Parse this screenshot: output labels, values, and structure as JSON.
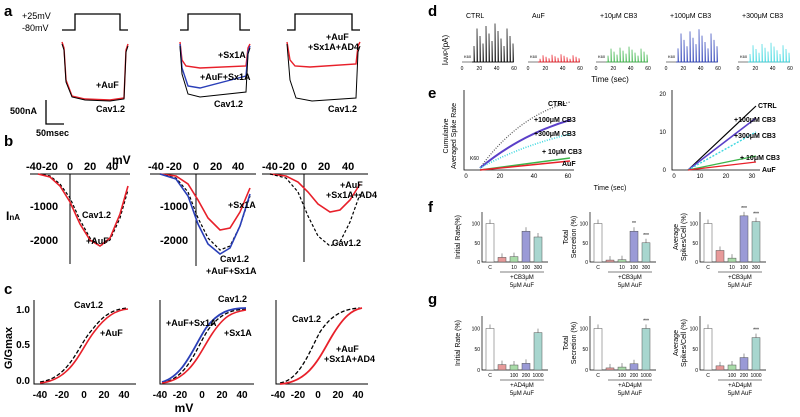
{
  "colors": {
    "black": "#000000",
    "red": "#e8202a",
    "blue": "#2a3fb8",
    "gray": "#8a8a8a",
    "green": "#3cb54a",
    "cyan": "#3fd8e0",
    "violet": "#5a3fc8",
    "lightblue": "#8fb9e8",
    "pinkbar": "#e79a9a",
    "greenbar": "#a9dca9",
    "purplebar": "#9a9ad6",
    "tealbar": "#a8d6cf"
  },
  "panel_a": {
    "letter": "a",
    "v_high": "+25mV",
    "v_low": "-80mV",
    "scale_y": "500nA",
    "scale_x": "50msec",
    "plots": [
      {
        "labels": [
          "+AuF",
          "Cav1.2"
        ]
      },
      {
        "labels": [
          "+Sx1A",
          "+AuF+Sx1A",
          "Cav1.2"
        ]
      },
      {
        "labels": [
          "+AuF",
          "+Sx1A+AD4",
          "Cav1.2"
        ]
      }
    ]
  },
  "panel_b": {
    "letter": "b",
    "x_unit": "mV",
    "y_unit": "I",
    "y_unit_sub": "nA",
    "x_ticks": [
      "-40",
      "-20",
      "0",
      "20",
      "40"
    ],
    "y_ticks": [
      "-1000",
      "-2000"
    ],
    "plots": [
      {
        "labels": [
          "Cav1.2",
          "+AuF"
        ]
      },
      {
        "labels": [
          "+Sx1A",
          "Cav1.2",
          "+AuF+Sx1A"
        ]
      },
      {
        "labels": [
          "+AuF",
          "+Sx1A+AD4",
          "Cav1.2"
        ]
      }
    ]
  },
  "panel_c": {
    "letter": "c",
    "ylabel": "G/Gmax",
    "xlabel": "mV",
    "x_ticks": [
      "-40",
      "-20",
      "0",
      "20",
      "40"
    ],
    "y_ticks": [
      "1.0",
      "0.5",
      "0.0"
    ],
    "plots": [
      {
        "labels": [
          "Cav1.2",
          "+AuF"
        ]
      },
      {
        "labels": [
          "+AuF+Sx1A",
          "Cav1.2",
          "+Sx1A"
        ]
      },
      {
        "labels": [
          "Cav1.2",
          "+AuF",
          "+Sx1A+AD4"
        ]
      }
    ]
  },
  "panel_d": {
    "letter": "d",
    "ylabel": "I",
    "ylabel_sub": "AMP",
    "ylabel_unit": "(pA)",
    "xlabel": "Time (sec)",
    "x_ticks": [
      "0",
      "20",
      "40",
      "60"
    ],
    "marker": "K60",
    "traces": [
      {
        "label": "CTRL"
      },
      {
        "label": "AuF"
      },
      {
        "label": "+10μM CB3"
      },
      {
        "label": "+100μM CB3"
      },
      {
        "label": "+300μM CB3"
      }
    ]
  },
  "panel_e": {
    "letter": "e",
    "ylabel_line1": "Cumulative",
    "ylabel_line2": "Averaged Spike Rate",
    "xlabel": "Time (sec)",
    "marker": "K60",
    "left": {
      "x_ticks": [
        "0",
        "20",
        "40",
        "60"
      ],
      "labels": [
        "CTRL",
        "+100μM CB3",
        "+300μM CB3",
        "+ 10μM CB3",
        "AuF"
      ]
    },
    "right": {
      "x_ticks": [
        "0",
        "10",
        "20",
        "30"
      ],
      "y_ticks": [
        "20",
        "10",
        "0"
      ],
      "labels": [
        "CTRL",
        "+100μM CB3",
        "+300μM CB3",
        "+ 10μM CB3",
        "AuF"
      ]
    }
  },
  "panel_f": {
    "letter": "f",
    "bracket_label": "+CB3μM",
    "condition": "5μM AuF",
    "bar_categories": [
      "C",
      "",
      "10",
      "100",
      "300"
    ],
    "charts": [
      {
        "ylabel_line1": "Initial Rate(%)",
        "ylabel_line2": "",
        "y_ticks": [
          "100",
          "50",
          "0"
        ],
        "values": [
          100,
          12,
          14,
          80,
          65
        ],
        "stars": [
          "",
          "",
          "",
          "",
          ""
        ]
      },
      {
        "ylabel_line1": "Total",
        "ylabel_line2": "Secretion (%)",
        "y_ticks": [
          "100",
          "50",
          "0"
        ],
        "values": [
          100,
          5,
          6,
          80,
          50
        ],
        "stars": [
          "",
          "",
          "",
          "**",
          "***"
        ]
      },
      {
        "ylabel_line1": "Average",
        "ylabel_line2": "Spikes/Cell (%)",
        "y_ticks": [
          "100",
          "50",
          "0"
        ],
        "values": [
          100,
          30,
          10,
          120,
          105
        ],
        "stars": [
          "",
          "",
          "",
          "***",
          "***"
        ]
      }
    ]
  },
  "panel_g": {
    "letter": "g",
    "bracket_label": "+AD4μM",
    "condition": "5μM AuF",
    "bar_categories": [
      "C",
      "",
      "100",
      "200",
      "1000"
    ],
    "charts": [
      {
        "ylabel_line1": "Initial Rate (%)",
        "ylabel_line2": "",
        "y_ticks": [
          "100",
          "50",
          "0"
        ],
        "values": [
          100,
          13,
          12,
          16,
          90
        ],
        "stars": [
          "",
          "",
          "",
          "",
          ""
        ]
      },
      {
        "ylabel_line1": "Total",
        "ylabel_line2": "Secretion (%)",
        "y_ticks": [
          "100",
          "50",
          "0"
        ],
        "values": [
          100,
          5,
          7,
          15,
          100
        ],
        "stars": [
          "",
          "",
          "",
          "",
          "***"
        ]
      },
      {
        "ylabel_line1": "Average",
        "ylabel_line2": "Spikes/Cell (%)",
        "y_ticks": [
          "100",
          "50",
          "0"
        ],
        "values": [
          100,
          10,
          12,
          30,
          78
        ],
        "stars": [
          "",
          "",
          "",
          "",
          "***"
        ]
      }
    ]
  }
}
